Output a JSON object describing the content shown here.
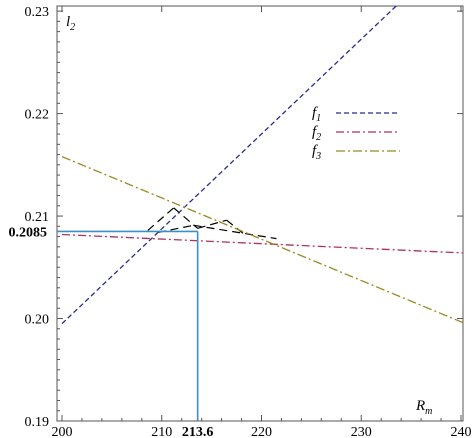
{
  "chart_data": {
    "type": "line",
    "title": "",
    "xlabel": "R",
    "xlabel_sub": "m",
    "ylabel": "l",
    "ylabel_sub": "2",
    "xlim": [
      199.5,
      240.2
    ],
    "ylim": [
      0.19,
      0.2305
    ],
    "grid": false,
    "legend_position": "right-middle",
    "x_ticks": [
      200,
      210,
      220,
      230,
      240
    ],
    "x_tick_labels": [
      "200",
      "210",
      "220",
      "230",
      "240"
    ],
    "y_ticks": [
      0.19,
      0.2,
      0.21,
      0.22,
      0.23
    ],
    "y_tick_labels": [
      "0.19",
      "0.20",
      "0.21",
      "0.22",
      "0.23"
    ],
    "series": [
      {
        "name": "f",
        "name_sub": "1",
        "color": "#2b2b8f",
        "dash": "5,3",
        "x": [
          200,
          233.5
        ],
        "y": [
          0.1995,
          0.2305
        ]
      },
      {
        "name": "f",
        "name_sub": "2",
        "color": "#b03060",
        "dash": "8,3,2,3",
        "x": [
          200,
          240.2
        ],
        "y": [
          0.2082,
          0.2064
        ]
      },
      {
        "name": "f",
        "name_sub": "3",
        "color": "#9a8a20",
        "dash": "9,3,2,3",
        "x": [
          200,
          240.2
        ],
        "y": [
          0.2158,
          0.1996
        ]
      }
    ],
    "annotation_lines": {
      "color": "#000000",
      "dash": "8,5",
      "segments": [
        {
          "x": [
            209.6,
            213.2
          ],
          "y": [
            0.2084,
            0.2091
          ]
        },
        {
          "x": [
            213.2,
            221.5
          ],
          "y": [
            0.2091,
            0.2078
          ]
        },
        {
          "x": [
            208.6,
            211.2
          ],
          "y": [
            0.2086,
            0.2108
          ]
        },
        {
          "x": [
            211.2,
            213.6
          ],
          "y": [
            0.2108,
            0.2088
          ]
        },
        {
          "x": [
            213.6,
            216.5
          ],
          "y": [
            0.2088,
            0.2096
          ]
        },
        {
          "x": [
            216.5,
            218.3
          ],
          "y": [
            0.2096,
            0.2082
          ]
        }
      ]
    },
    "highlight": {
      "color": "#3a8fc8",
      "x": 213.6,
      "y": 0.2085,
      "x_label": "213.6",
      "y_label": "0.2085"
    }
  }
}
